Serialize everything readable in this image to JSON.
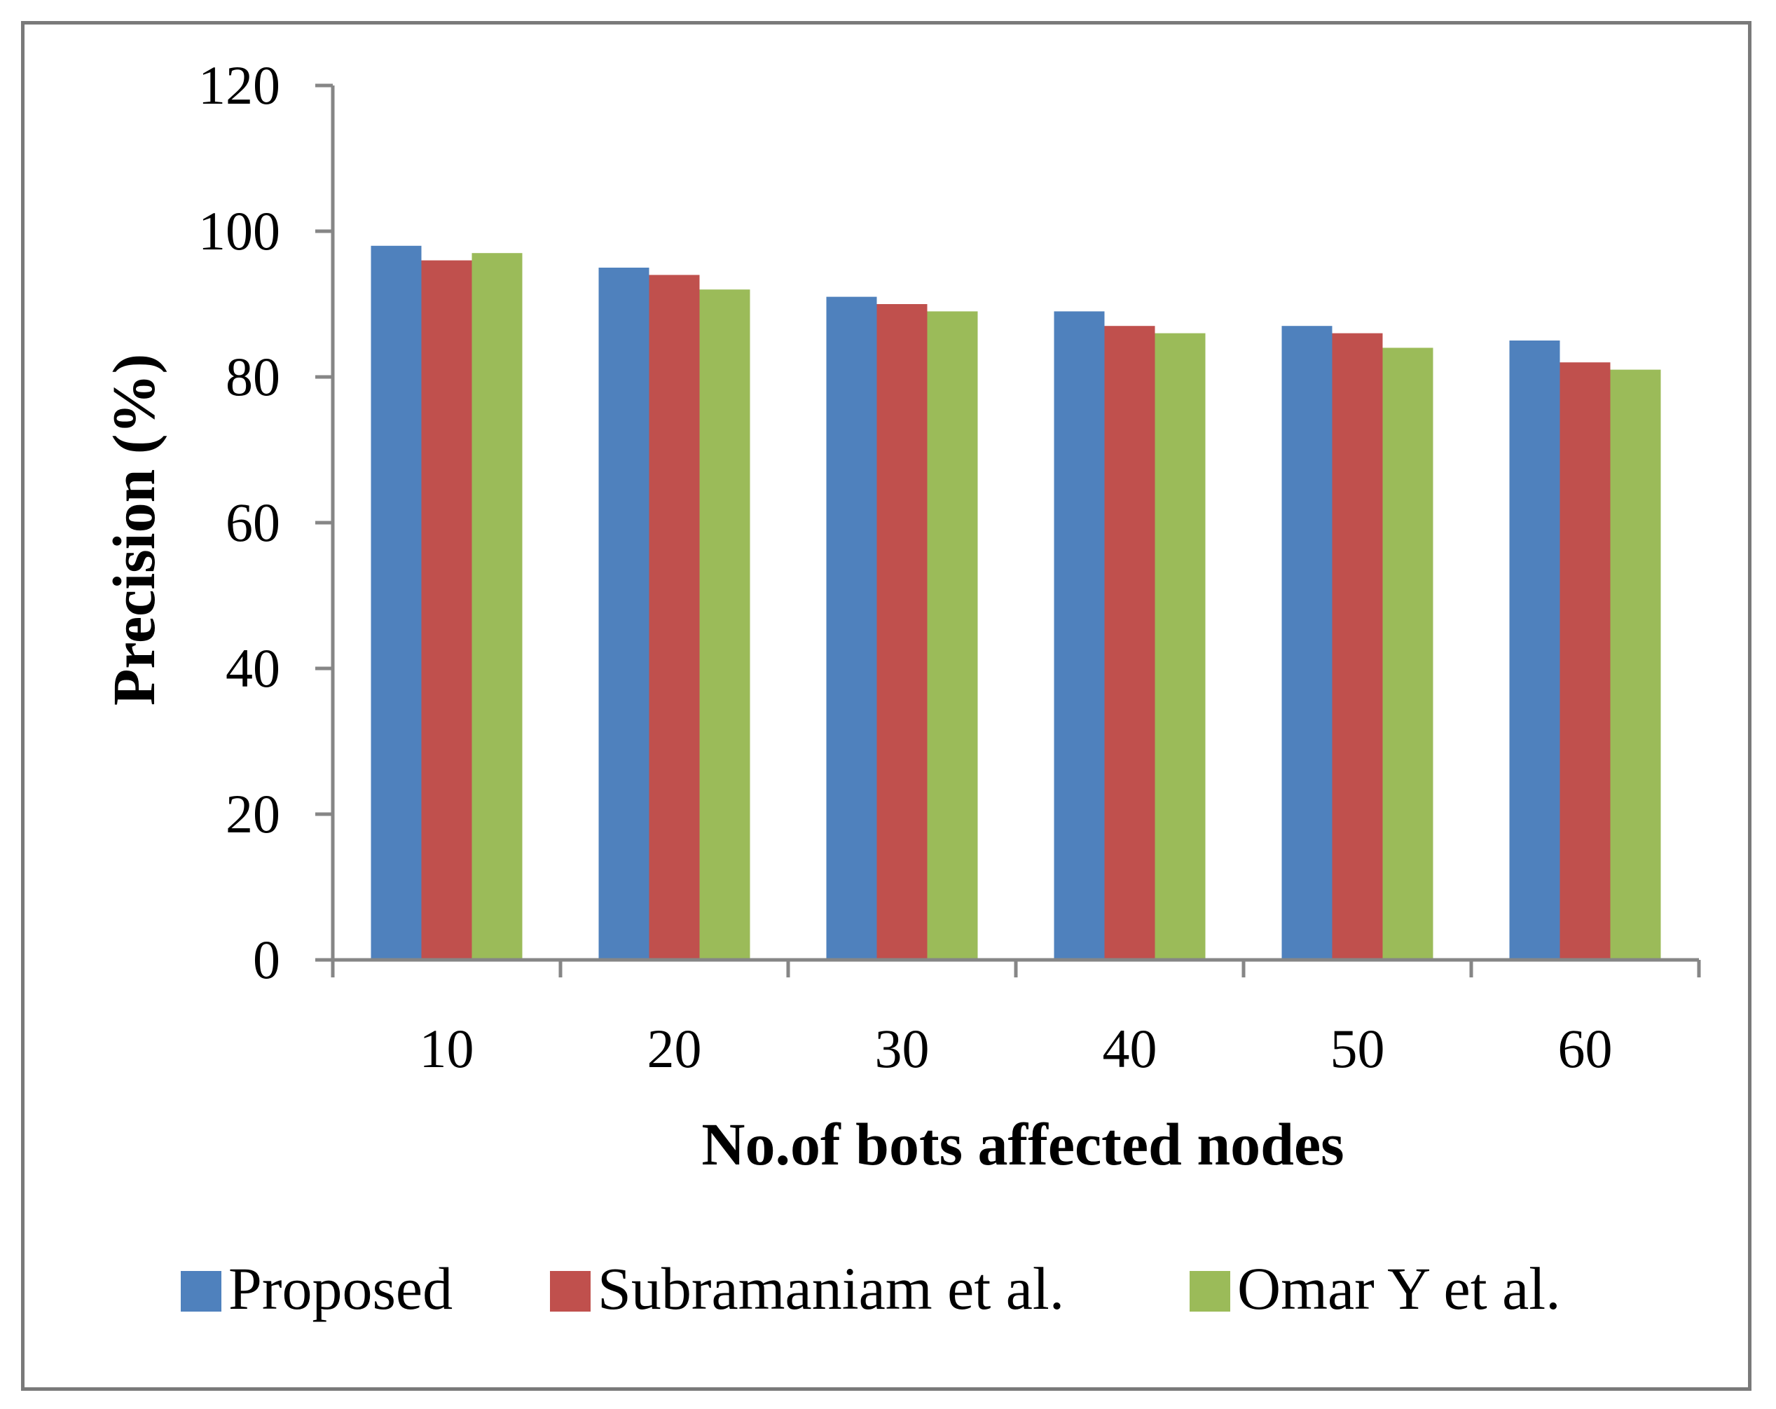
{
  "chart_data": {
    "type": "bar",
    "title": "",
    "xlabel": "No.of bots affected nodes",
    "ylabel": "Precision (%)",
    "categories": [
      "10",
      "20",
      "30",
      "40",
      "50",
      "60"
    ],
    "ylim": [
      0,
      120
    ],
    "yticks": [
      0,
      20,
      40,
      60,
      80,
      100,
      120
    ],
    "grid": false,
    "legend_position": "bottom",
    "series": [
      {
        "name": "Proposed",
        "color": "#4F81BD",
        "values": [
          98,
          95,
          91,
          89,
          87,
          85
        ]
      },
      {
        "name": "Subramaniam et al.",
        "color": "#C0504D",
        "values": [
          96,
          94,
          90,
          87,
          86,
          82
        ]
      },
      {
        "name": "Omar Y et al.",
        "color": "#9BBB59",
        "values": [
          97,
          92,
          89,
          86,
          84,
          81
        ]
      }
    ]
  }
}
